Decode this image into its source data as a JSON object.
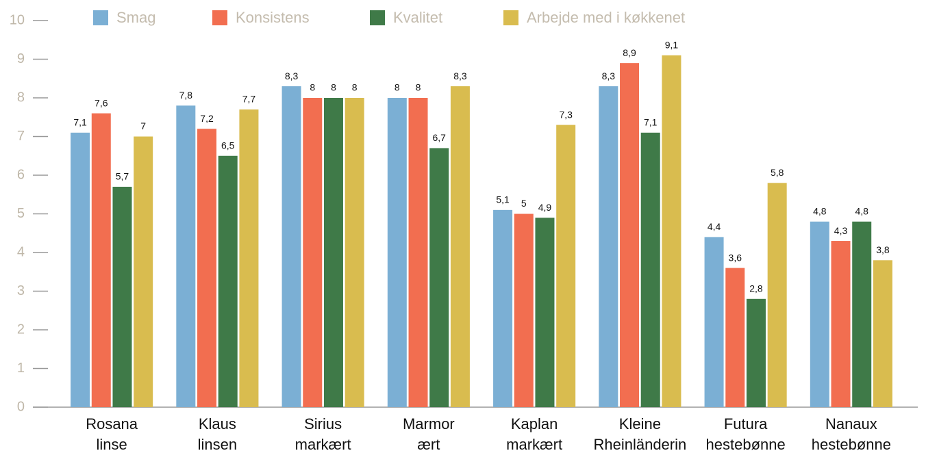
{
  "chart_data": {
    "type": "bar",
    "categories": [
      "Rosana linse",
      "Klaus linsen",
      "Sirius markært",
      "Marmor ært",
      "Kaplan markært",
      "Kleine Rheinländerin",
      "Futura hestebønne",
      "Nanaux hestebønne"
    ],
    "series": [
      {
        "name": "Smag",
        "color": "#7bafd4",
        "values": [
          7.1,
          7.8,
          8.3,
          8,
          5.1,
          8.3,
          4.4,
          4.8
        ],
        "value_labels": [
          "7,1",
          "7,8",
          "8,3",
          "8",
          "5,1",
          "8,3",
          "4,4",
          "4,8"
        ]
      },
      {
        "name": "Konsistens",
        "color": "#f26e50",
        "values": [
          7.6,
          7.2,
          8,
          8,
          5,
          8.9,
          3.6,
          4.3
        ],
        "value_labels": [
          "7,6",
          "7,2",
          "8",
          "8",
          "5",
          "8,9",
          "3,6",
          "4,3"
        ]
      },
      {
        "name": "Kvalitet",
        "color": "#3f7a48",
        "values": [
          5.7,
          6.5,
          8,
          6.7,
          4.9,
          7.1,
          2.8,
          4.8
        ],
        "value_labels": [
          "5,7",
          "6,5",
          "8",
          "6,7",
          "4,9",
          "7,1",
          "2,8",
          "4,8"
        ]
      },
      {
        "name": "Arbejde med i køkkenet",
        "color": "#d9bc4f",
        "values": [
          7,
          7.7,
          8,
          8.3,
          7.3,
          9.1,
          5.8,
          3.8
        ],
        "value_labels": [
          "7",
          "7,7",
          "8",
          "8,3",
          "7,3",
          "9,1",
          "5,8",
          "3,8"
        ]
      }
    ],
    "ylim": [
      0,
      10
    ],
    "yticks": [
      0,
      1,
      2,
      3,
      4,
      5,
      6,
      7,
      8,
      9,
      10
    ],
    "legend": "top"
  }
}
